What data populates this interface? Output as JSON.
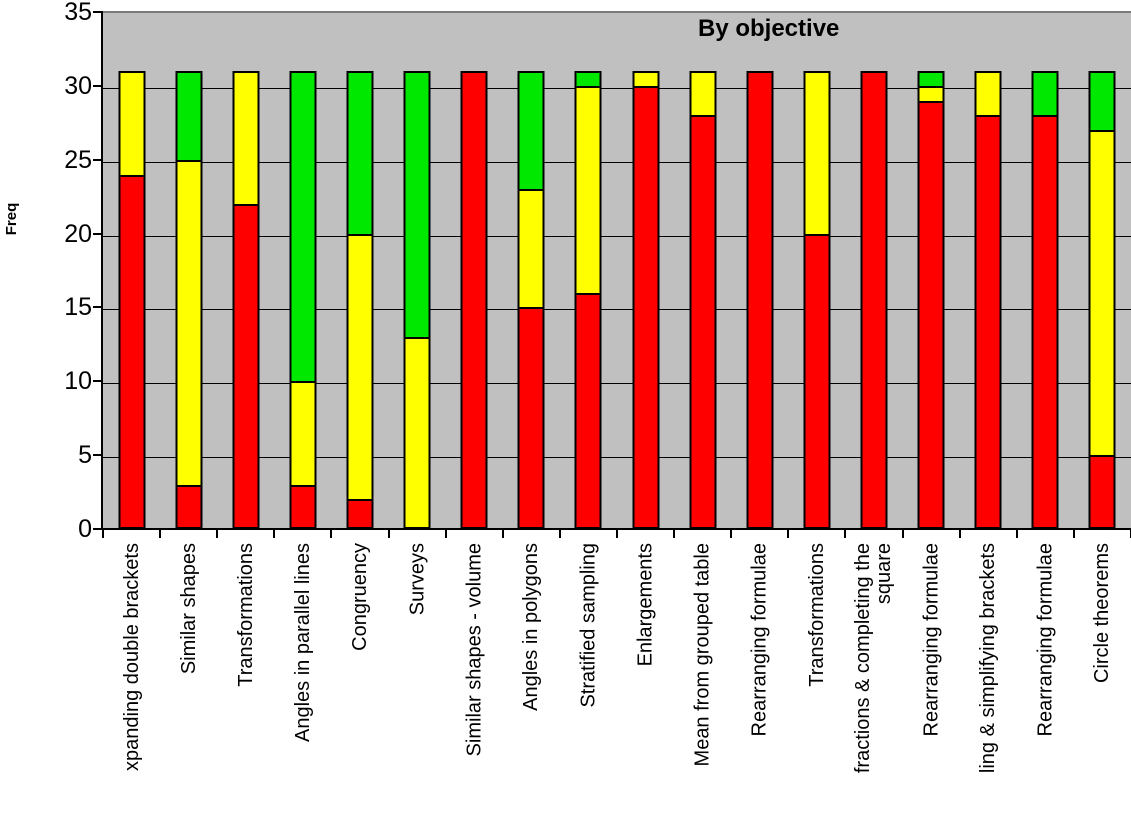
{
  "colors": {
    "red": "#FF0000",
    "yellow": "#FFFF00",
    "green": "#00E800",
    "plot_background": "#C0C0C0",
    "gridline": "#000000",
    "axis": "#000000"
  },
  "chart_data": {
    "type": "bar",
    "stacked": true,
    "title": "By objective",
    "xlabel": "",
    "ylabel": "Freq",
    "ylim": [
      0,
      35
    ],
    "y_ticks": [
      0,
      5,
      10,
      15,
      20,
      25,
      30,
      35
    ],
    "grid": true,
    "legend": false,
    "plot_background": "#C0C0C0",
    "total_per_bar": 31,
    "categories": [
      "xpanding double brackets",
      "Similar shapes",
      "Transformations",
      "Angles in parallel lines",
      "Congruency",
      "Surveys",
      "Similar shapes - volume",
      "Angles in polygons",
      "Stratified sampling",
      "Enlargements",
      "Mean from grouped table",
      "Rearranging formulae",
      "Transformations",
      "fractions & completing the square",
      "Rearranging formulae",
      "ling & simplifying brackets",
      "Rearranging formulae",
      "Circle theorems"
    ],
    "series": [
      {
        "name": "red",
        "color": "#FF0000",
        "values": [
          24,
          3,
          22,
          3,
          2,
          0,
          31,
          15,
          16,
          30,
          28,
          31,
          20,
          31,
          29,
          28,
          28,
          5
        ]
      },
      {
        "name": "yellow",
        "color": "#FFFF00",
        "values": [
          7,
          22,
          9,
          7,
          18,
          13,
          0,
          8,
          14,
          1,
          3,
          0,
          11,
          0,
          1,
          3,
          0,
          22
        ]
      },
      {
        "name": "green",
        "color": "#00E800",
        "values": [
          0,
          6,
          0,
          21,
          11,
          18,
          0,
          8,
          1,
          0,
          0,
          0,
          0,
          0,
          1,
          0,
          3,
          4
        ]
      }
    ]
  }
}
